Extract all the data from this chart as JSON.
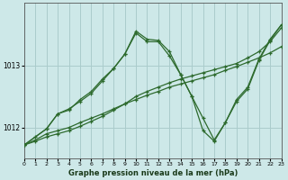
{
  "background_color": "#cde8e8",
  "grid_color": "#aacccc",
  "line_color": "#2d6a2d",
  "title": "Graphe pression niveau de la mer (hPa)",
  "xlim": [
    0,
    23
  ],
  "ylim": [
    1011.5,
    1014.0
  ],
  "yticks": [
    1012,
    1013
  ],
  "xticks": [
    0,
    1,
    2,
    3,
    4,
    5,
    6,
    7,
    8,
    9,
    10,
    11,
    12,
    13,
    14,
    15,
    16,
    17,
    18,
    19,
    20,
    21,
    22,
    23
  ],
  "series1_x": [
    0,
    1,
    2,
    3,
    4,
    5,
    6,
    7,
    8,
    9,
    10,
    11,
    12,
    13,
    14,
    15,
    16,
    17,
    18,
    19,
    20,
    21,
    22,
    23
  ],
  "series1_y": [
    1011.72,
    1011.8,
    1011.9,
    1011.95,
    1012.0,
    1012.08,
    1012.15,
    1012.22,
    1012.3,
    1012.38,
    1012.45,
    1012.52,
    1012.58,
    1012.65,
    1012.7,
    1012.75,
    1012.8,
    1012.85,
    1012.92,
    1012.98,
    1013.05,
    1013.12,
    1013.2,
    1013.3
  ],
  "series2_x": [
    0,
    1,
    2,
    3,
    4,
    5,
    6,
    7,
    8,
    9,
    10,
    11,
    12,
    13,
    14,
    15,
    16,
    17,
    18,
    19,
    20,
    21,
    22,
    23
  ],
  "series2_y": [
    1011.72,
    1011.78,
    1011.85,
    1011.9,
    1011.95,
    1012.02,
    1012.1,
    1012.18,
    1012.28,
    1012.38,
    1012.5,
    1012.58,
    1012.65,
    1012.72,
    1012.78,
    1012.83,
    1012.88,
    1012.93,
    1012.98,
    1013.03,
    1013.12,
    1013.22,
    1013.38,
    1013.6
  ],
  "series3_x": [
    0,
    1,
    2,
    3,
    4,
    5,
    6,
    7,
    8,
    9,
    10,
    11,
    12,
    13,
    14,
    15,
    16,
    17,
    18,
    19,
    20,
    21,
    22,
    23
  ],
  "series3_y": [
    1011.72,
    1011.85,
    1011.98,
    1012.22,
    1012.3,
    1012.42,
    1012.55,
    1012.75,
    1012.95,
    1013.18,
    1013.55,
    1013.42,
    1013.4,
    1013.22,
    1012.85,
    1012.5,
    1011.95,
    1011.78,
    1012.08,
    1012.45,
    1012.65,
    1013.1,
    1013.42,
    1013.65
  ],
  "series4_x": [
    0,
    2,
    3,
    4,
    5,
    6,
    7,
    8,
    9,
    10,
    11,
    12,
    13,
    14,
    15,
    16,
    17,
    18,
    19,
    20,
    21,
    22,
    23
  ],
  "series4_y": [
    1011.72,
    1011.98,
    1012.22,
    1012.28,
    1012.45,
    1012.58,
    1012.78,
    1012.95,
    1013.18,
    1013.52,
    1013.38,
    1013.38,
    1013.15,
    1012.85,
    1012.5,
    1012.15,
    1011.8,
    1012.08,
    1012.42,
    1012.62,
    1013.08,
    1013.4,
    1013.65
  ]
}
